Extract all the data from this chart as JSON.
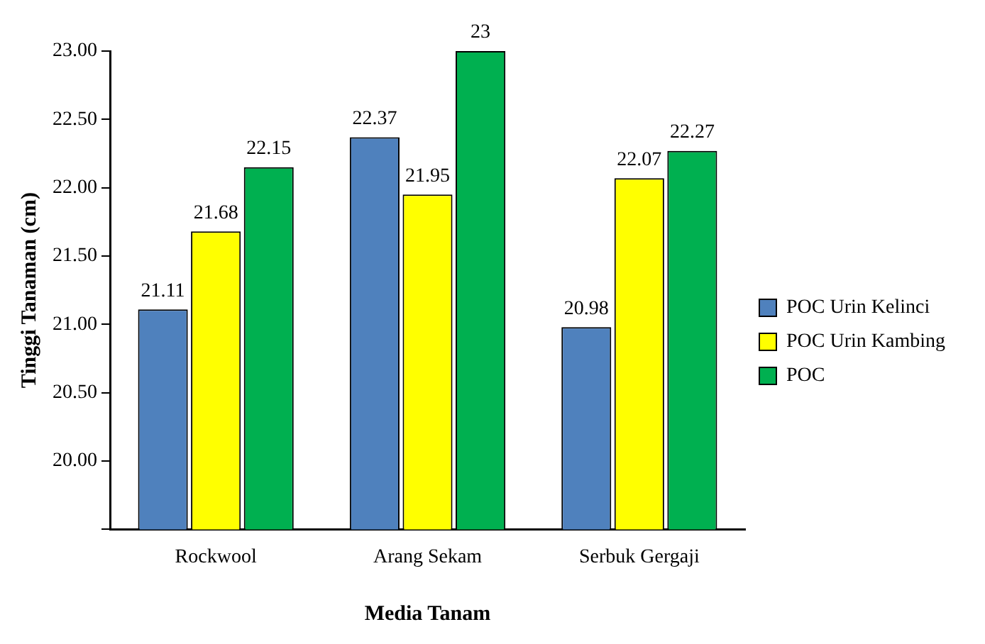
{
  "chart_data": {
    "type": "bar",
    "xlabel": "Media Tanam",
    "ylabel": "Tinggi Tanaman (cm)",
    "categories": [
      "Rockwool",
      "Arang Sekam",
      "Serbuk Gergaji"
    ],
    "series": [
      {
        "name": "POC Urin Kelinci",
        "color": "#4f81bd",
        "values": [
          21.11,
          22.37,
          20.98
        ],
        "value_labels": [
          "21.11",
          "22.37",
          "20.98"
        ]
      },
      {
        "name": "POC Urin Kambing",
        "color": "#ffff00",
        "values": [
          21.68,
          21.95,
          22.07
        ],
        "value_labels": [
          "21.68",
          "21.95",
          "22.07"
        ]
      },
      {
        "name": "POC",
        "color": "#00b050",
        "values": [
          22.15,
          23,
          22.27
        ],
        "value_labels": [
          "22.15",
          "23",
          "22.27"
        ]
      }
    ],
    "ylim": [
      19.5,
      23
    ],
    "yticks": [
      {
        "value": 19.5,
        "label": null
      },
      {
        "value": 20,
        "label": "20.00"
      },
      {
        "value": 20.5,
        "label": "20.50"
      },
      {
        "value": 21,
        "label": "21.00"
      },
      {
        "value": 21.5,
        "label": "21.50"
      },
      {
        "value": 22,
        "label": "22.00"
      },
      {
        "value": 22.5,
        "label": "22.50"
      },
      {
        "value": 23,
        "label": "23.00"
      }
    ],
    "grid": false,
    "legend": "right"
  }
}
